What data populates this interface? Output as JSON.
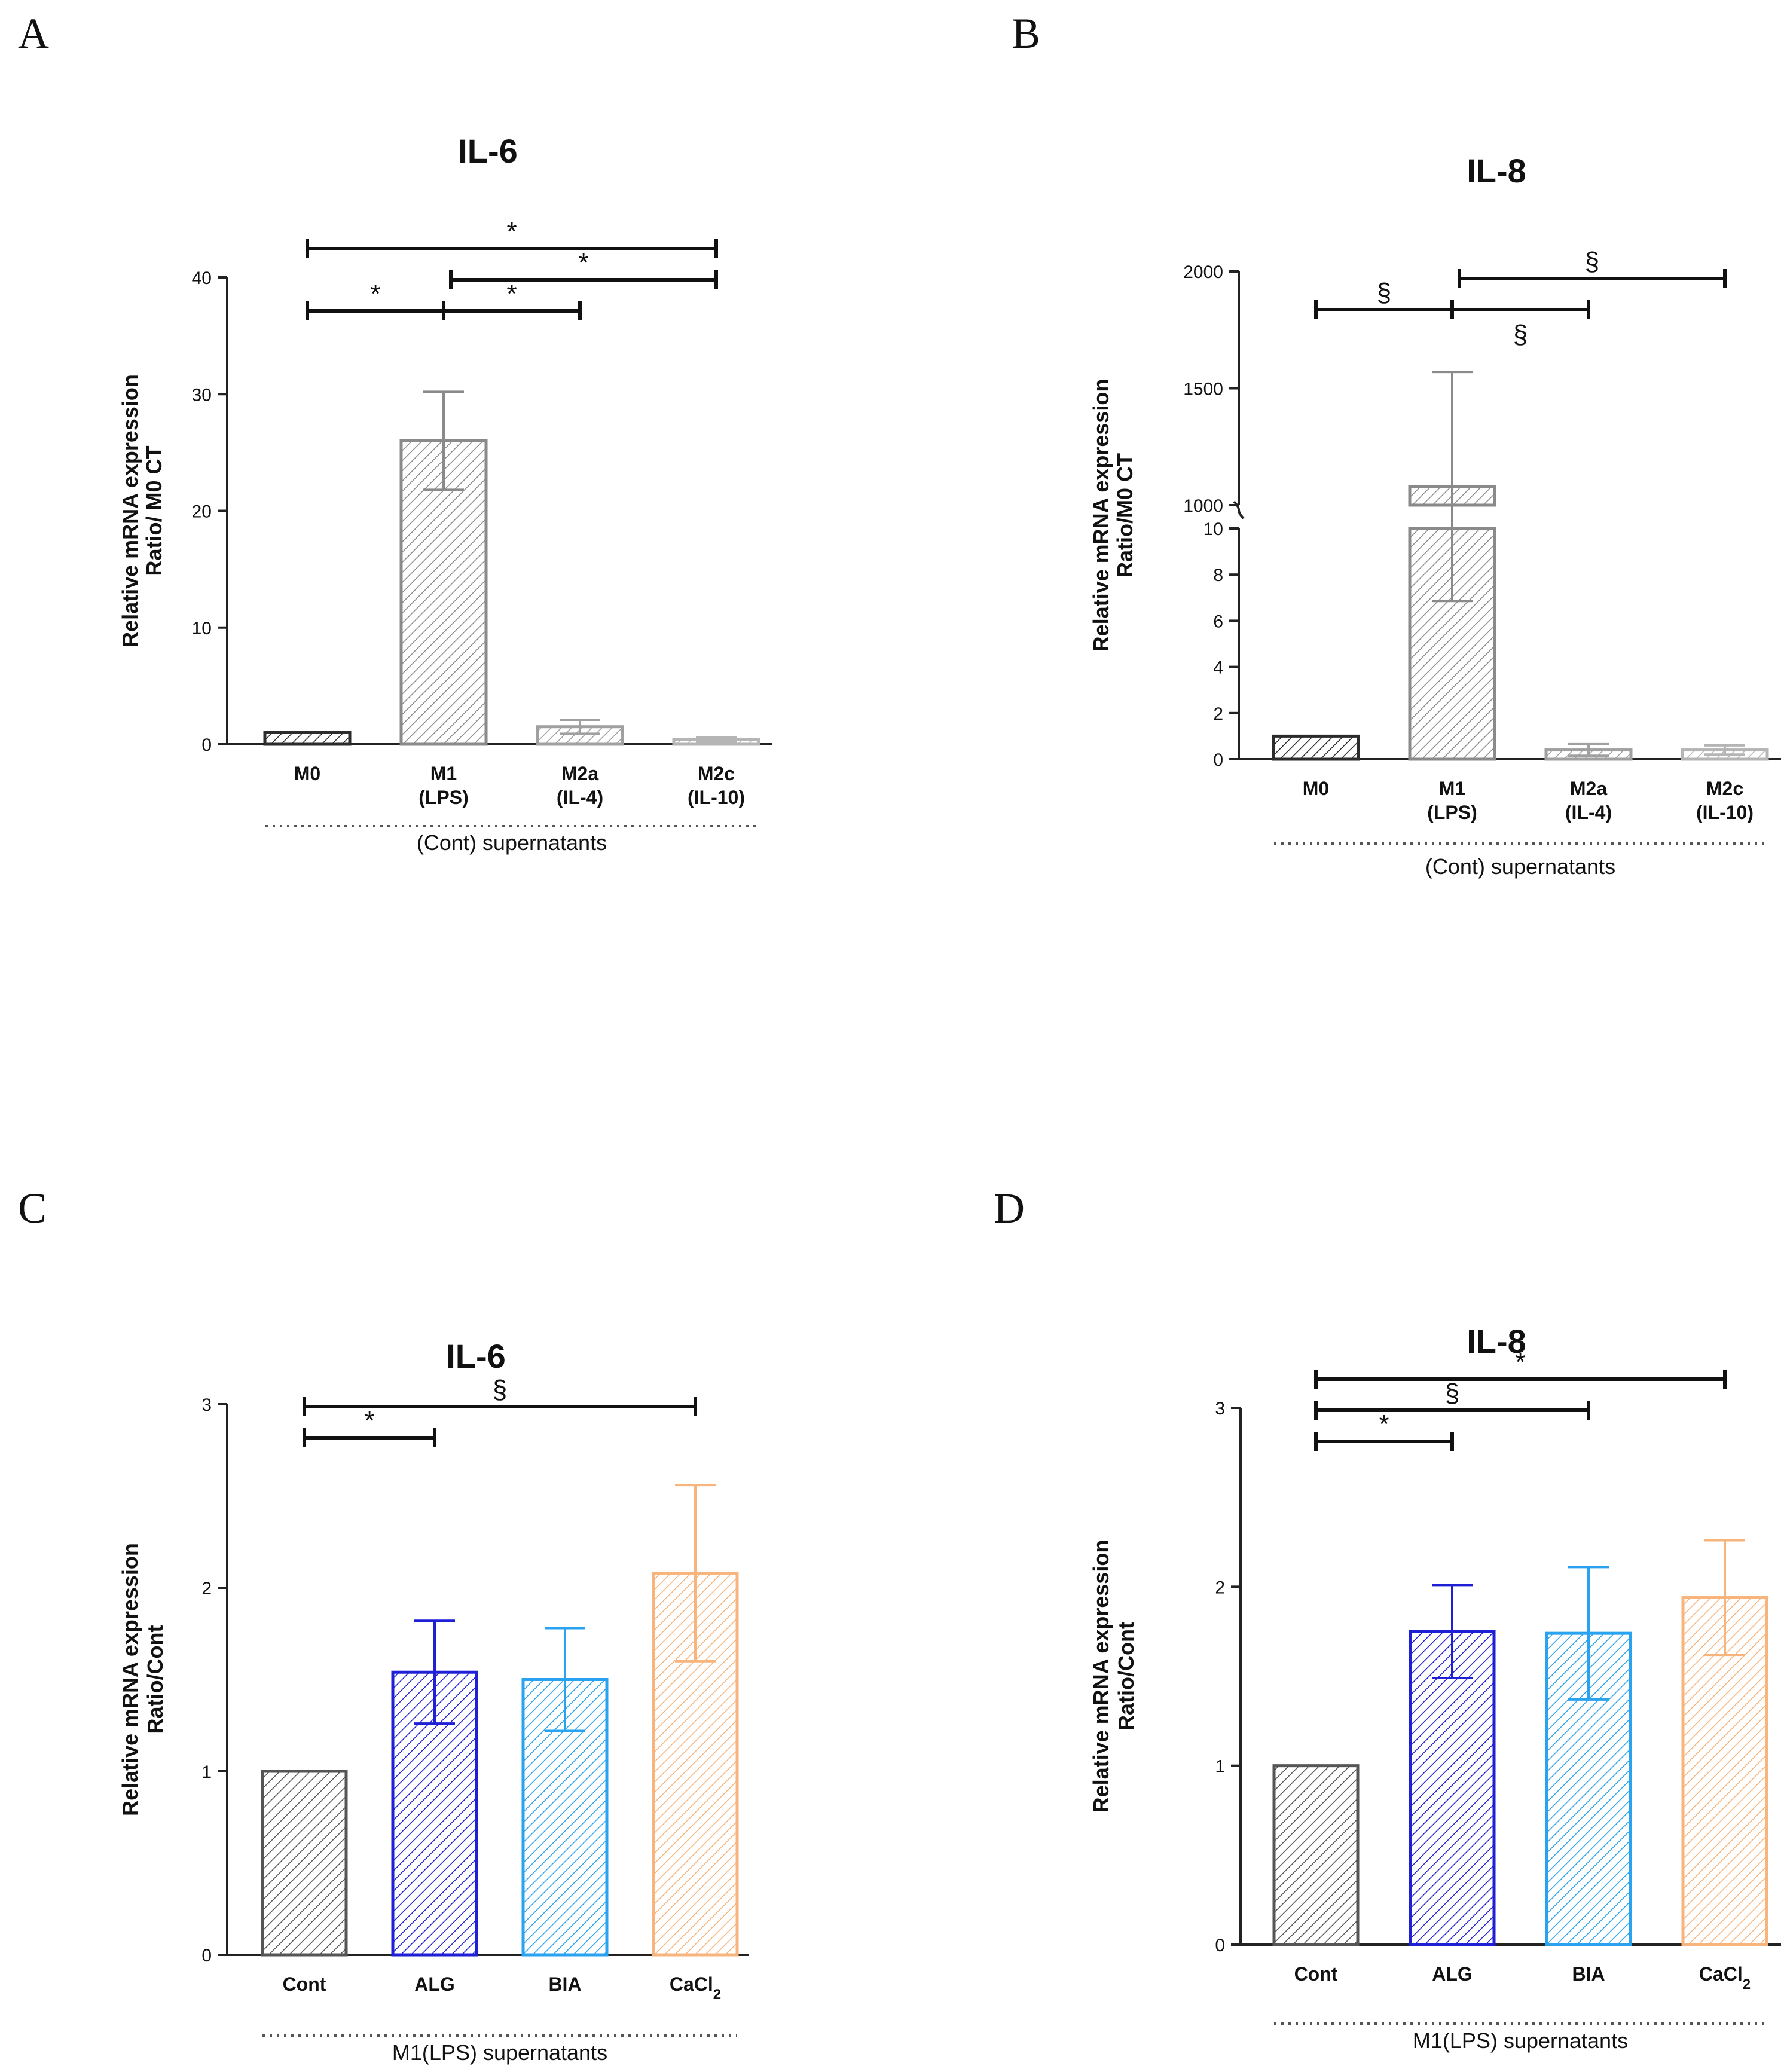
{
  "chart_data": [
    {
      "panel": "A",
      "type": "bar",
      "title": "IL-6",
      "ylabel_line1": "Relative mRNA expression",
      "ylabel_line2": "Ratio/ M0 CT",
      "categories": [
        {
          "line1": "M0",
          "line2": ""
        },
        {
          "line1": "M1",
          "line2": "(LPS)"
        },
        {
          "line1": "M2a",
          "line2": "(IL-4)"
        },
        {
          "line1": "M2c",
          "line2": "(IL-10)"
        }
      ],
      "values": [
        1.0,
        26.0,
        1.5,
        0.4
      ],
      "errors": [
        0,
        4.2,
        0.6,
        0.2
      ],
      "colors": [
        "#2b2b2b",
        "#8a8a8a",
        "#a0a0a0",
        "#b5b5b5"
      ],
      "ylim": [
        0,
        40
      ],
      "yticks": [
        0,
        10,
        20,
        30,
        40
      ],
      "group_label": "(Cont) supernatants",
      "significance": [
        {
          "from": 0,
          "to": 1,
          "label": "*",
          "level": 1
        },
        {
          "from": 1,
          "to": 2,
          "label": "*",
          "level": 1
        },
        {
          "from": 1,
          "to": 3,
          "label": "*",
          "level": 2
        },
        {
          "from": 0,
          "to": 3,
          "label": "*",
          "level": 3
        }
      ]
    },
    {
      "panel": "B",
      "type": "bar",
      "title": "IL-8",
      "ylabel_line1": "Relative mRNA expression",
      "ylabel_line2": "Ratio/M0 CT",
      "broken_axis": true,
      "lower_ylim": [
        0,
        10
      ],
      "lower_yticks": [
        0,
        2,
        4,
        6,
        8,
        10
      ],
      "upper_ylim": [
        1000,
        2000
      ],
      "upper_yticks": [
        1000,
        1500,
        2000
      ],
      "categories": [
        {
          "line1": "M0",
          "line2": ""
        },
        {
          "line1": "M1",
          "line2": "(LPS)"
        },
        {
          "line1": "M2a",
          "line2": "(IL-4)"
        },
        {
          "line1": "M2c",
          "line2": "(IL-10)"
        }
      ],
      "values": [
        1.0,
        1080,
        0.4,
        0.4
      ],
      "errors": [
        0,
        490,
        0.25,
        0.2
      ],
      "colors": [
        "#2b2b2b",
        "#8a8a8a",
        "#a0a0a0",
        "#b5b5b5"
      ],
      "group_label": "(Cont) supernatants",
      "significance": [
        {
          "from": 0,
          "to": 1,
          "label": "§",
          "level": 1,
          "label_pos": "above"
        },
        {
          "from": 1,
          "to": 2,
          "label": "§",
          "level": 1,
          "label_pos": "below"
        },
        {
          "from": 1,
          "to": 3,
          "label": "§",
          "level": 2,
          "label_pos": "above"
        }
      ]
    },
    {
      "panel": "C",
      "type": "bar",
      "title": "IL-6",
      "ylabel_line1": "Relative mRNA expression",
      "ylabel_line2": "Ratio/Cont",
      "categories": [
        {
          "line1": "Cont",
          "line2": ""
        },
        {
          "line1": "ALG",
          "line2": ""
        },
        {
          "line1": "BIA",
          "line2": ""
        },
        {
          "line1": "CaCl",
          "line2": "",
          "sub": "2"
        }
      ],
      "values": [
        1.0,
        1.54,
        1.5,
        2.08
      ],
      "errors": [
        0,
        0.28,
        0.28,
        0.48
      ],
      "colors": [
        "#555555",
        "#1f1fd6",
        "#29a3f0",
        "#f7b47c"
      ],
      "ylim": [
        0,
        3
      ],
      "yticks": [
        0,
        1,
        2,
        3
      ],
      "group_label": "M1(LPS) supernatants",
      "significance": [
        {
          "from": 0,
          "to": 1,
          "label": "*",
          "level": 1
        },
        {
          "from": 0,
          "to": 3,
          "label": "§",
          "level": 2
        }
      ]
    },
    {
      "panel": "D",
      "type": "bar",
      "title": "IL-8",
      "ylabel_line1": "Relative mRNA expression",
      "ylabel_line2": "Ratio/Cont",
      "categories": [
        {
          "line1": "Cont",
          "line2": ""
        },
        {
          "line1": "ALG",
          "line2": ""
        },
        {
          "line1": "BIA",
          "line2": ""
        },
        {
          "line1": "CaCl",
          "line2": "",
          "sub": "2"
        }
      ],
      "values": [
        1.0,
        1.75,
        1.74,
        1.94
      ],
      "errors": [
        0,
        0.26,
        0.37,
        0.32
      ],
      "colors": [
        "#555555",
        "#1f1fd6",
        "#29a3f0",
        "#f7b47c"
      ],
      "ylim": [
        0,
        3
      ],
      "yticks": [
        0,
        1,
        2,
        3
      ],
      "group_label": "M1(LPS) supernatants",
      "significance": [
        {
          "from": 0,
          "to": 1,
          "label": "*",
          "level": 1
        },
        {
          "from": 0,
          "to": 2,
          "label": "§",
          "level": 2
        },
        {
          "from": 0,
          "to": 3,
          "label": "*",
          "level": 3
        }
      ]
    }
  ]
}
